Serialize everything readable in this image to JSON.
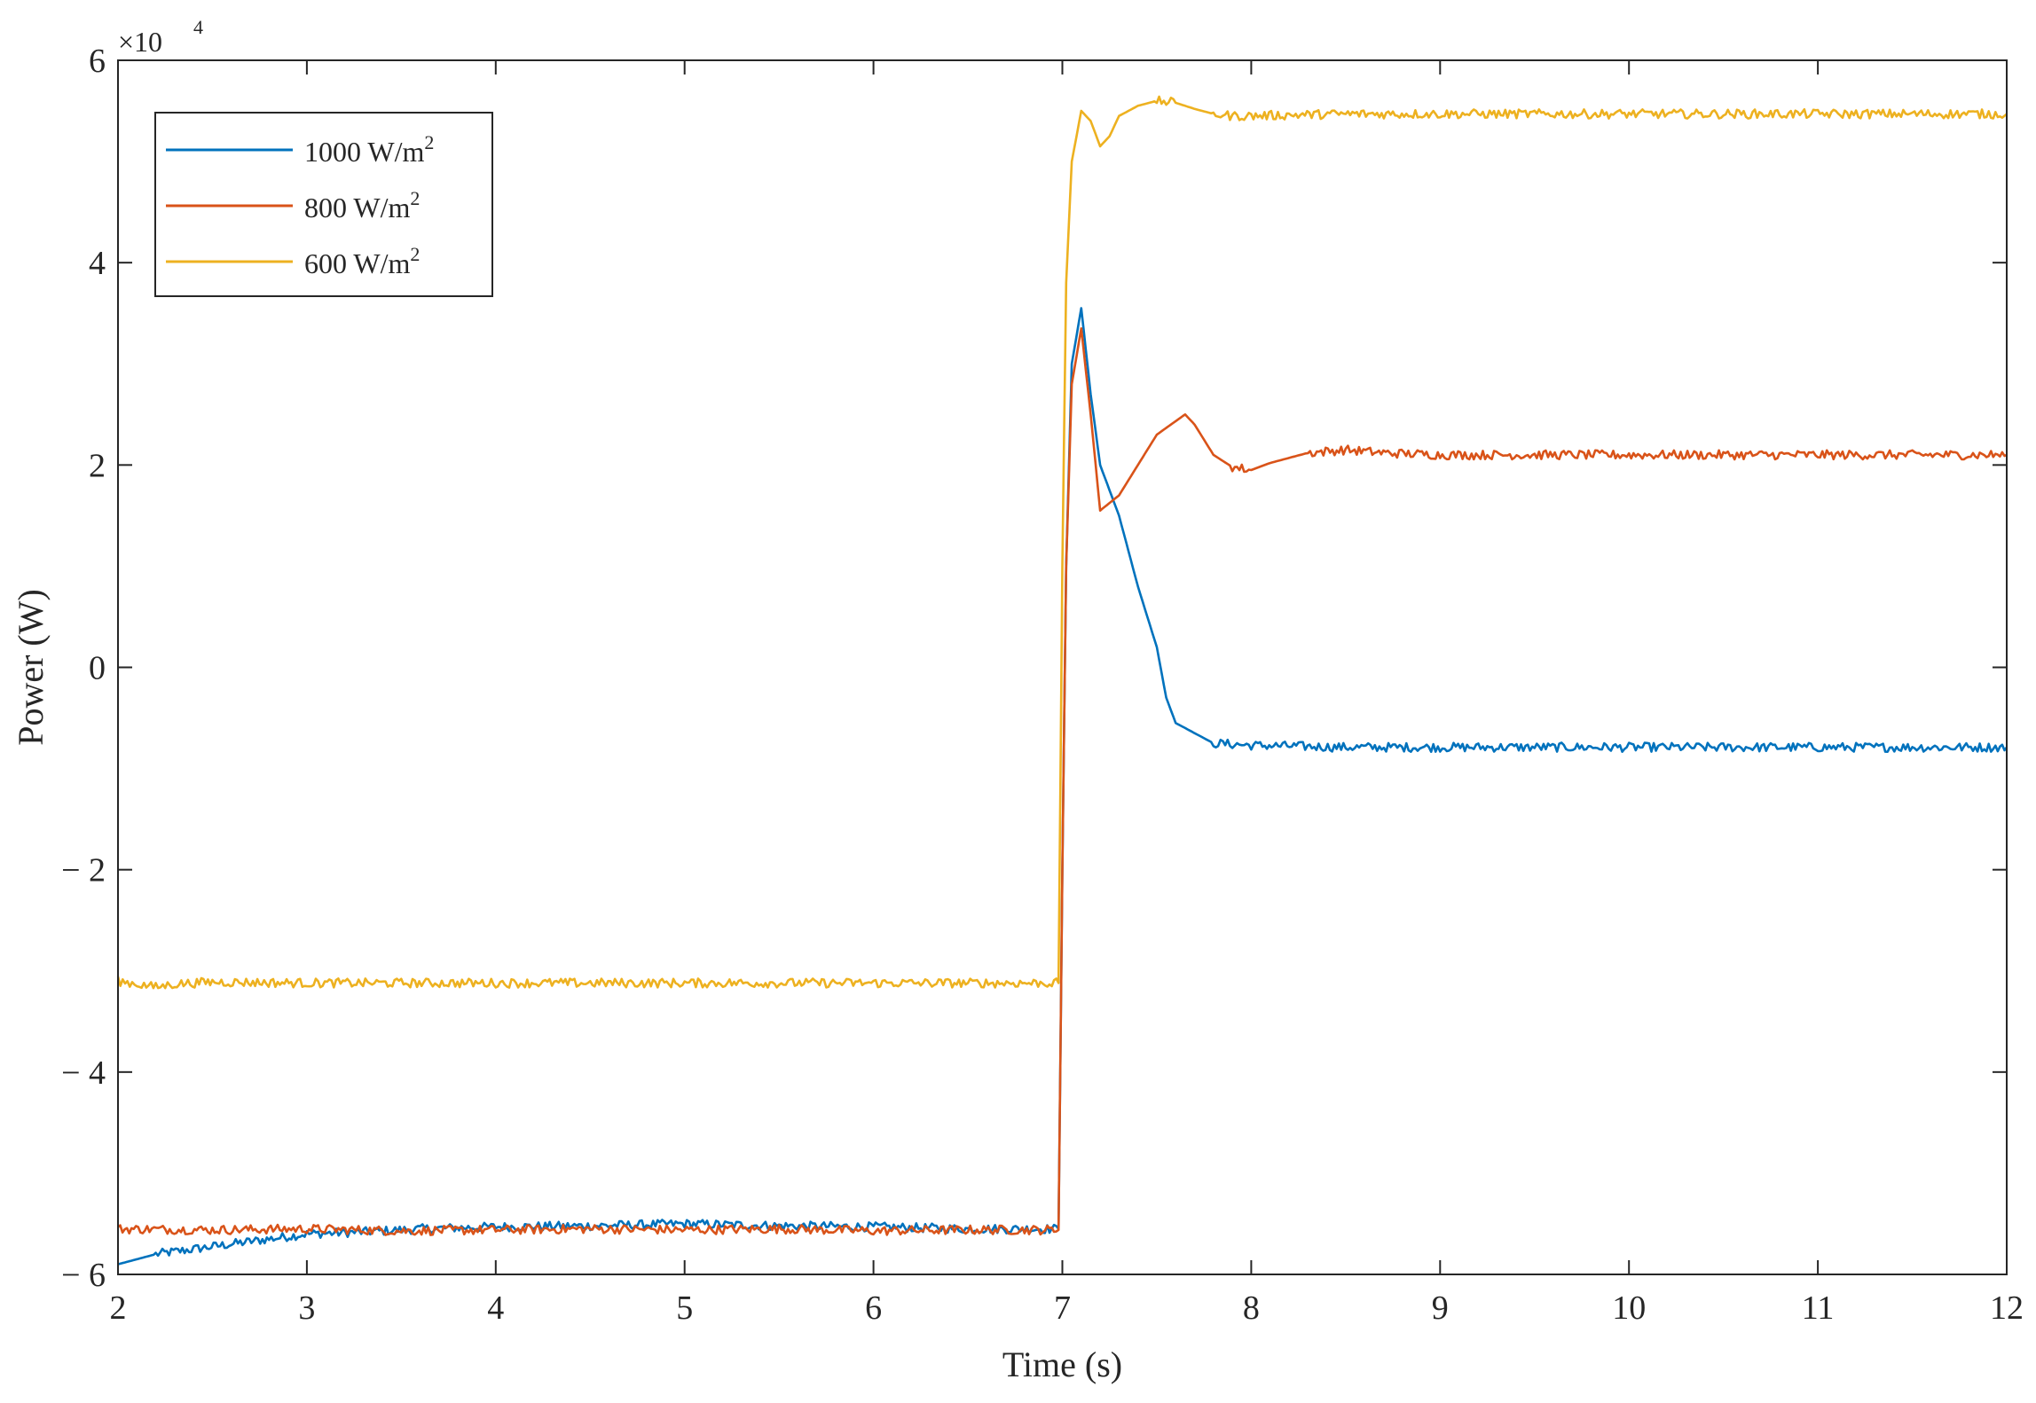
{
  "chart_data": {
    "type": "line",
    "title": "",
    "xlabel": "Time (s)",
    "ylabel": "Power (W)",
    "xlim": [
      2,
      12
    ],
    "ylim": [
      -6,
      6
    ],
    "y_scale_exponent_label": "×10",
    "y_scale_exponent": "4",
    "y_unit_multiplier": 10000,
    "x_ticks": [
      "2",
      "3",
      "4",
      "5",
      "6",
      "7",
      "8",
      "9",
      "10",
      "11",
      "12"
    ],
    "y_ticks": [
      "− 6",
      "− 4",
      "− 2",
      "0",
      "2",
      "4",
      "6"
    ],
    "grid": false,
    "legend_position": "top-left",
    "series": [
      {
        "name": "1000 W/m",
        "name_sup": "2",
        "color": "#0072BD",
        "x": [
          2.0,
          2.2,
          2.4,
          2.6,
          2.8,
          3.0,
          3.3,
          3.6,
          4.0,
          4.5,
          5.0,
          5.5,
          6.0,
          6.5,
          6.98,
          7.0,
          7.02,
          7.05,
          7.1,
          7.15,
          7.2,
          7.3,
          7.4,
          7.5,
          7.55,
          7.6,
          7.65,
          7.7,
          7.8,
          7.9,
          8.0,
          8.5,
          9.0,
          9.5,
          10.0,
          10.5,
          11.0,
          11.5,
          12.0
        ],
        "y": [
          -59000,
          -58000,
          -57500,
          -57000,
          -56500,
          -56000,
          -55800,
          -55500,
          -55300,
          -55200,
          -55000,
          -55200,
          -55300,
          -55500,
          -55500,
          -20000,
          10000,
          30000,
          35500,
          27000,
          20000,
          15000,
          8000,
          2000,
          -3000,
          -5500,
          -6000,
          -6500,
          -7500,
          -7600,
          -7700,
          -7900,
          -7900,
          -7900,
          -7900,
          -7900,
          -7900,
          -7900,
          -7900
        ]
      },
      {
        "name": "800 W/m",
        "name_sup": "2",
        "color": "#D95319",
        "x": [
          2.0,
          2.5,
          3.0,
          3.5,
          4.0,
          4.5,
          5.0,
          5.5,
          6.0,
          6.5,
          6.98,
          7.0,
          7.02,
          7.05,
          7.1,
          7.15,
          7.2,
          7.3,
          7.4,
          7.5,
          7.65,
          7.7,
          7.8,
          7.9,
          8.0,
          8.1,
          8.3,
          8.5,
          8.7,
          9.0,
          9.5,
          10.0,
          10.5,
          11.0,
          11.5,
          12.0
        ],
        "y": [
          -55500,
          -55600,
          -55500,
          -55700,
          -55600,
          -55500,
          -55600,
          -55500,
          -55700,
          -55600,
          -55600,
          -20000,
          10000,
          28000,
          33500,
          25000,
          15500,
          17000,
          20000,
          23000,
          25000,
          24000,
          21000,
          19800,
          19500,
          20200,
          21200,
          21500,
          21200,
          21000,
          21000,
          21000,
          21000,
          21000,
          21000,
          21000
        ]
      },
      {
        "name": "600 W/m",
        "name_sup": "2",
        "color": "#EDB120",
        "x": [
          2.0,
          2.1,
          2.2,
          2.3,
          2.5,
          3.0,
          3.5,
          4.0,
          4.5,
          5.0,
          5.5,
          6.0,
          6.5,
          6.98,
          7.0,
          7.02,
          7.05,
          7.1,
          7.15,
          7.2,
          7.25,
          7.3,
          7.4,
          7.5,
          7.6,
          7.7,
          7.8,
          7.9,
          8.0,
          8.2,
          8.5,
          9.0,
          9.5,
          10.0,
          10.5,
          11.0,
          11.5,
          12.0
        ],
        "y": [
          -31000,
          -31300,
          -31600,
          -31300,
          -31100,
          -31200,
          -31200,
          -31200,
          -31200,
          -31200,
          -31200,
          -31200,
          -31200,
          -31200,
          10000,
          38000,
          50000,
          55000,
          54000,
          51500,
          52500,
          54500,
          55500,
          56000,
          55800,
          55200,
          54700,
          54500,
          54500,
          54600,
          54700,
          54700,
          54700,
          54700,
          54700,
          54700,
          54700,
          54700
        ]
      }
    ]
  }
}
